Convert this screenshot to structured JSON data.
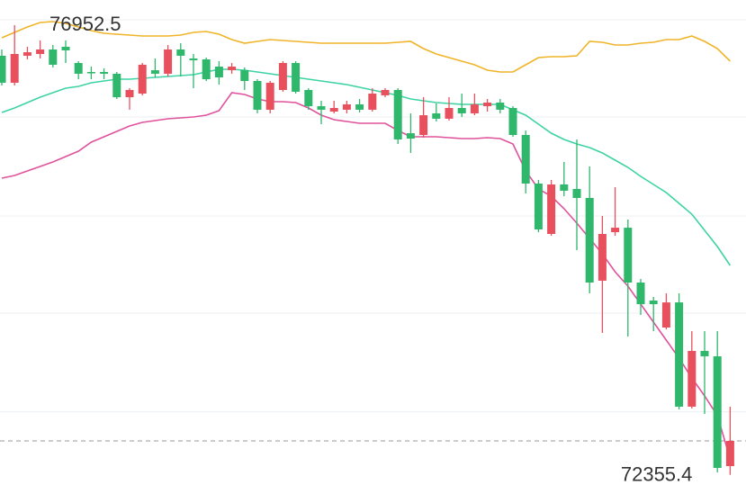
{
  "chart_data": {
    "type": "candlestick",
    "ylim": [
      72067,
      77210
    ],
    "grid_lines": [
      77008,
      76014,
      75002,
      74008,
      72998
    ],
    "up_color": "#e9505e",
    "down_color": "#2fb76c",
    "open": [
      76640,
      76364,
      76640,
      76658,
      76704,
      76732,
      76566,
      76474,
      76474,
      76456,
      76216,
      76253,
      76492,
      76456,
      76704,
      76612,
      76603,
      76529,
      76492,
      76492,
      76382,
      76088,
      76290,
      76566,
      76290,
      76124,
      76069,
      76088,
      76143,
      76088,
      76235,
      76290,
      75848,
      75830,
      76051,
      75996,
      76106,
      76051,
      76124,
      76161,
      76106,
      75830,
      75333,
      74818,
      75324,
      75278,
      75186,
      74340,
      74836,
      74882,
      74321,
      74137,
      73861,
      74118,
      73052,
      73622,
      73567,
      72444
    ],
    "high": [
      76704,
      76952.5,
      76732,
      76796,
      76750,
      76796,
      76584,
      76529,
      76511,
      76474,
      76308,
      76566,
      76612,
      76750,
      76768,
      76658,
      76621,
      76584,
      76566,
      76520,
      76400,
      76382,
      76584,
      76584,
      76308,
      76180,
      76180,
      76180,
      76198,
      76308,
      76308,
      76308,
      76051,
      76216,
      76152,
      76216,
      76253,
      76253,
      76198,
      76198,
      76124,
      75876,
      75370,
      75370,
      75554,
      75784,
      75508,
      75002,
      75296,
      74965,
      74358,
      74174,
      74211,
      74211,
      73824,
      73824,
      73824,
      73052
    ],
    "low": [
      76336,
      76336,
      76603,
      76612,
      76520,
      76566,
      76400,
      76400,
      76400,
      76198,
      76088,
      76235,
      76419,
      76428,
      76428,
      76308,
      76382,
      76345,
      76456,
      76290,
      76051,
      76051,
      76272,
      76253,
      76088,
      75940,
      76051,
      76051,
      76060,
      76069,
      76216,
      75738,
      75646,
      75802,
      75968,
      75977,
      76014,
      76032,
      76069,
      76051,
      75812,
      75232,
      74836,
      74800,
      75204,
      74652,
      74211,
      73806,
      74800,
      73769,
      73990,
      73824,
      73843,
      73024,
      73033,
      72978,
      72380,
      72355.4
    ],
    "close": [
      76364,
      76658,
      76676,
      76704,
      76548,
      76695,
      76456,
      76465,
      76456,
      76216,
      76290,
      76548,
      76456,
      76704,
      76640,
      76594,
      76400,
      76419,
      76529,
      76382,
      76088,
      76364,
      76566,
      76272,
      76124,
      76088,
      76106,
      76143,
      76088,
      76253,
      76290,
      75784,
      75793,
      76032,
      75996,
      76106,
      76051,
      76143,
      76161,
      76088,
      75830,
      75333,
      74864,
      75324,
      75260,
      75186,
      74321,
      74818,
      74882,
      74321,
      74100,
      74100,
      74118,
      73052,
      73622,
      73567,
      72426,
      72702
    ],
    "bands": [
      {
        "color": "#f0b429",
        "values": [
          76824,
          76879,
          76934,
          76980,
          76989,
          76971,
          76934,
          76897,
          76870,
          76860,
          76851,
          76842,
          76842,
          76842,
          76851,
          76879,
          76888,
          76860,
          76805,
          76768,
          76787,
          76805,
          76796,
          76787,
          76778,
          76768,
          76768,
          76768,
          76768,
          76768,
          76768,
          76778,
          76787,
          76713,
          76658,
          76621,
          76584,
          76548,
          76492,
          76474,
          76474,
          76548,
          76621,
          76630,
          76630,
          76640,
          76787,
          76778,
          76750,
          76750,
          76768,
          76778,
          76805,
          76805,
          76842,
          76787,
          76713,
          76584
        ]
      },
      {
        "color": "#3dd3a4",
        "values": [
          76060,
          76106,
          76161,
          76216,
          76262,
          76308,
          76327,
          76364,
          76382,
          76400,
          76400,
          76410,
          76419,
          76428,
          76437,
          76446,
          76474,
          76502,
          76502,
          76492,
          76474,
          76456,
          76437,
          76419,
          76400,
          76382,
          76364,
          76345,
          76318,
          76290,
          76262,
          76235,
          76198,
          76180,
          76161,
          76152,
          76143,
          76143,
          76143,
          76143,
          76088,
          76032,
          75940,
          75848,
          75784,
          75738,
          75701,
          75646,
          75572,
          75499,
          75407,
          75324,
          75241,
          75131,
          75020,
          74855,
          74689,
          74496
        ]
      },
      {
        "color": "#e0529c",
        "values": [
          75388,
          75416,
          75462,
          75508,
          75554,
          75609,
          75664,
          75756,
          75812,
          75867,
          75922,
          75959,
          75977,
          75996,
          76005,
          76014,
          76032,
          76078,
          76262,
          76244,
          76198,
          76170,
          76170,
          76161,
          76106,
          76032,
          75986,
          75968,
          75950,
          75950,
          75950,
          75876,
          75812,
          75812,
          75812,
          75802,
          75793,
          75793,
          75802,
          75793,
          75738,
          75462,
          75278,
          75204,
          75076,
          74928,
          74772,
          74615,
          74431,
          74284,
          74100,
          73916,
          73732,
          73548,
          73346,
          73162,
          72960,
          72518
        ]
      }
    ]
  }
}
